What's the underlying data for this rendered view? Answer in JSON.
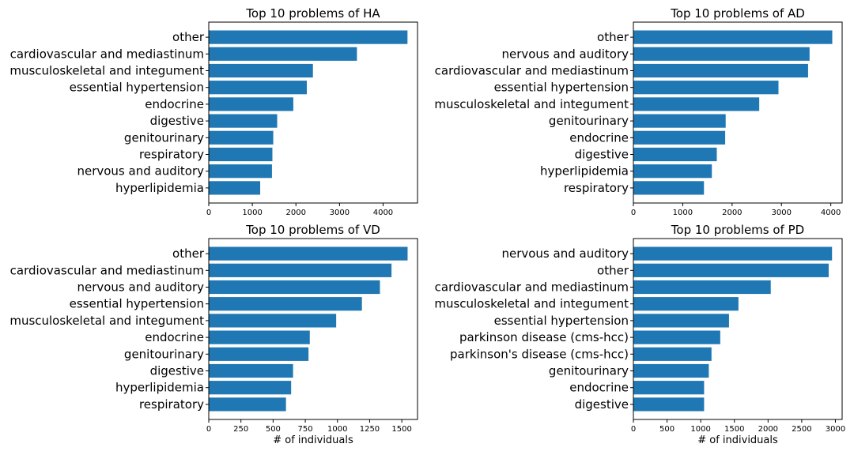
{
  "chart_data": [
    {
      "type": "bar",
      "orientation": "horizontal",
      "title": "Top 10 problems of HA",
      "categories": [
        "other",
        "cardiovascular and mediastinum",
        "musculoskeletal and integument",
        "essential hypertension",
        "endocrine",
        "digestive",
        "genitourinary",
        "respiratory",
        "nervous and auditory",
        "hyperlipidemia"
      ],
      "values": [
        4560,
        3400,
        2390,
        2250,
        1940,
        1570,
        1480,
        1460,
        1450,
        1180
      ],
      "xlim": [
        0,
        4790
      ],
      "xticks": [
        0,
        1000,
        2000,
        3000,
        4000
      ],
      "xlabel": "",
      "color": "#1f77b4"
    },
    {
      "type": "bar",
      "orientation": "horizontal",
      "title": "Top 10 problems of AD",
      "categories": [
        "other",
        "nervous and auditory",
        "cardiovascular and mediastinum",
        "essential hypertension",
        "musculoskeletal and integument",
        "genitourinary",
        "endocrine",
        "digestive",
        "hyperlipidemia",
        "respiratory"
      ],
      "values": [
        4030,
        3570,
        3540,
        2940,
        2550,
        1870,
        1860,
        1690,
        1590,
        1430
      ],
      "xlim": [
        0,
        4230
      ],
      "xticks": [
        0,
        1000,
        2000,
        3000,
        4000
      ],
      "xlabel": "",
      "color": "#1f77b4"
    },
    {
      "type": "bar",
      "orientation": "horizontal",
      "title": "Top 10 problems of VD",
      "categories": [
        "other",
        "cardiovascular and mediastinum",
        "nervous and auditory",
        "essential hypertension",
        "musculoskeletal and integument",
        "endocrine",
        "genitourinary",
        "digestive",
        "hyperlipidemia",
        "respiratory"
      ],
      "values": [
        1545,
        1420,
        1330,
        1190,
        990,
        785,
        775,
        655,
        640,
        600
      ],
      "xlim": [
        0,
        1622
      ],
      "xticks": [
        0,
        250,
        500,
        750,
        1000,
        1250,
        1500
      ],
      "xlabel": "# of individuals",
      "color": "#1f77b4"
    },
    {
      "type": "bar",
      "orientation": "horizontal",
      "title": "Top 10 problems of PD",
      "categories": [
        "nervous and auditory",
        "other",
        "cardiovascular and mediastinum",
        "musculoskeletal and integument",
        "essential hypertension",
        "parkinson disease (cms-hcc)",
        "parkinson's disease (cms-hcc)",
        "genitourinary",
        "endocrine",
        "digestive"
      ],
      "values": [
        2950,
        2900,
        2040,
        1560,
        1420,
        1290,
        1160,
        1120,
        1050,
        1050
      ],
      "xlim": [
        0,
        3100
      ],
      "xticks": [
        0,
        500,
        1000,
        1500,
        2000,
        2500,
        3000
      ],
      "xlabel": "# of individuals",
      "color": "#1f77b4"
    }
  ]
}
